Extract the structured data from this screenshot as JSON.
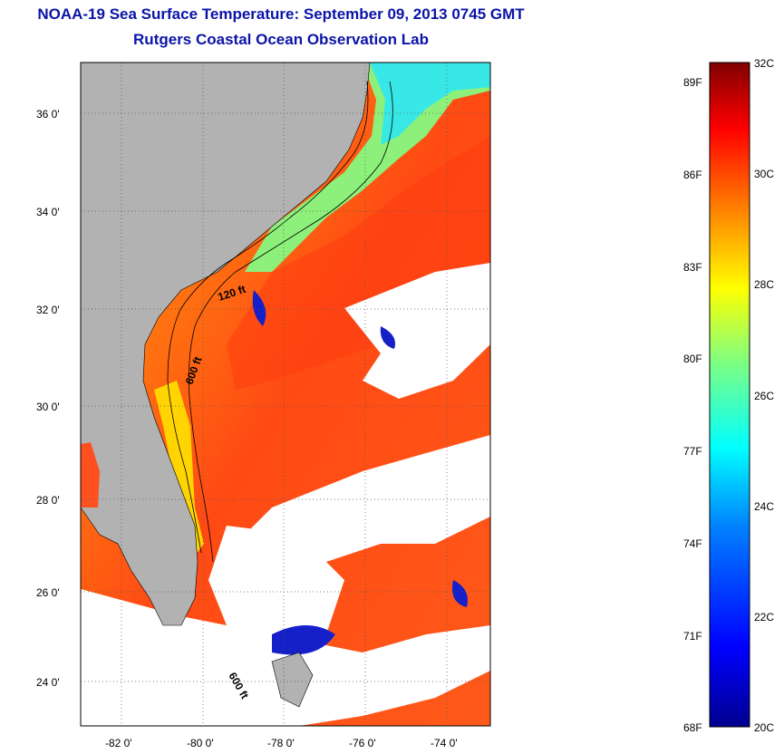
{
  "header": {
    "title_line1": "NOAA-19 Sea Surface Temperature:  September 09, 2013 0745 GMT",
    "title_line2": "Rutgers Coastal Ocean Observation Lab"
  },
  "map": {
    "lat_ticks": [
      "36 0'",
      "34 0'",
      "32 0'",
      "30 0'",
      "28 0'",
      "26 0'",
      "24 0'"
    ],
    "lon_ticks": [
      "-82 0'",
      "-80 0'",
      "-78 0'",
      "-76 0'",
      "-74 0'"
    ],
    "isobath_labels": [
      "120 ft",
      "600 ft",
      "600 ft"
    ],
    "land_color": "#b2b2b2",
    "cloud_color": "#ffffff"
  },
  "colorbar": {
    "fahrenheit_labels": [
      "89F",
      "86F",
      "83F",
      "80F",
      "77F",
      "74F",
      "71F",
      "68F"
    ],
    "celsius_labels": [
      "32C",
      "30C",
      "28C",
      "26C",
      "24C",
      "22C",
      "20C"
    ],
    "colors": [
      "#00008f",
      "#0000ff",
      "#0080ff",
      "#00ffff",
      "#80ff80",
      "#ffff00",
      "#ff8000",
      "#ff0000",
      "#800000"
    ]
  }
}
